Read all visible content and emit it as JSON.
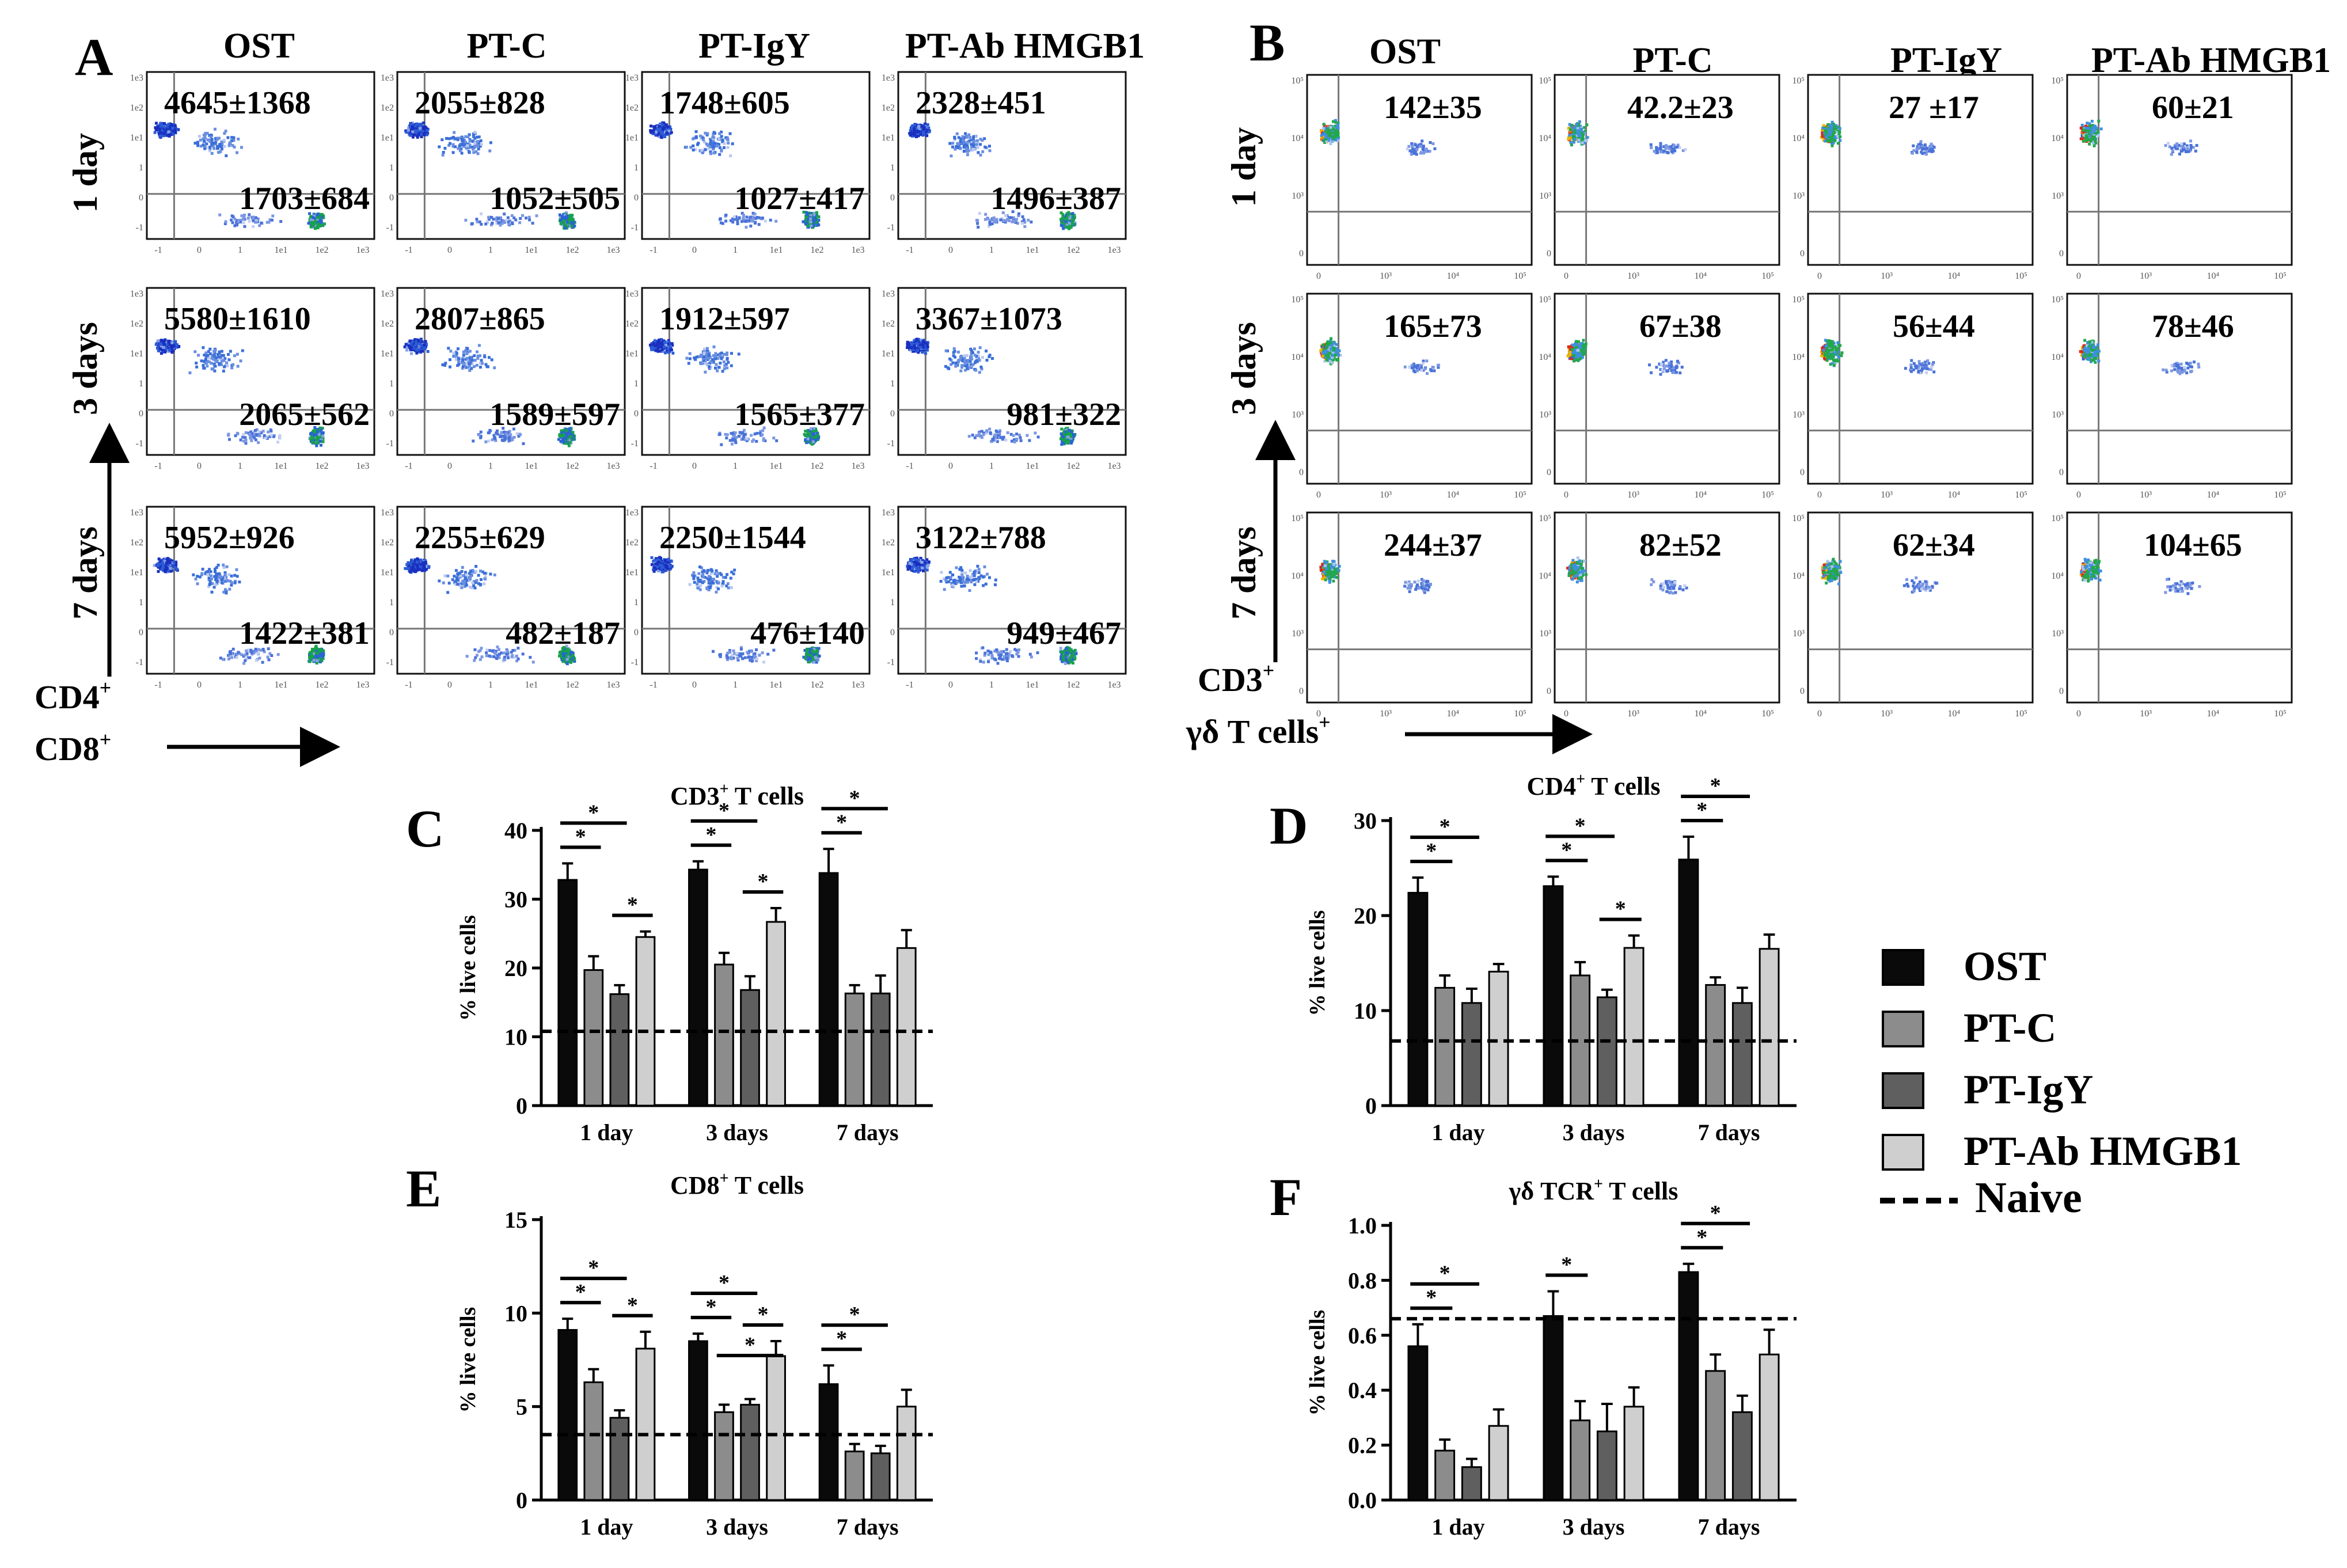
{
  "panel_letters": {
    "A": "A",
    "B": "B",
    "C": "C",
    "D": "D",
    "E": "E",
    "F": "F"
  },
  "groups": [
    "OST",
    "PT-C",
    "PT-IgY",
    "PT-Ab HMGB1"
  ],
  "timepoints": [
    "1 day",
    "3 days",
    "7 days"
  ],
  "flow_A": {
    "y_marker": "CD4",
    "x_marker": "CD8",
    "superscript": "+",
    "counts": [
      [
        [
          "4645±1368",
          "1703±684"
        ],
        [
          "2055±828",
          "1052±505"
        ],
        [
          "1748±605",
          "1027±417"
        ],
        [
          "2328±451",
          "1496±387"
        ]
      ],
      [
        [
          "5580±1610",
          "2065±562"
        ],
        [
          "2807±865",
          "1589±597"
        ],
        [
          "1912±597",
          "1565±377"
        ],
        [
          "3367±1073",
          "981±322"
        ]
      ],
      [
        [
          "5952±926",
          "1422±381"
        ],
        [
          "2255±629",
          "482±187"
        ],
        [
          "2250±1544",
          "476±140"
        ],
        [
          "3122±788",
          "949±467"
        ]
      ]
    ]
  },
  "flow_B": {
    "y_marker": "CD3",
    "x_marker": "γδ T cells",
    "superscript": "+",
    "counts": [
      [
        "142±35",
        "42.2±23",
        "27 ±17",
        "60±21"
      ],
      [
        "165±73",
        "67±38",
        "56±44",
        "78±46"
      ],
      [
        "244±37",
        "82±52",
        "62±34",
        "104±65"
      ]
    ]
  },
  "legend": {
    "items": [
      "OST",
      "PT-C",
      "PT-IgY",
      "PT-Ab HMGB1"
    ],
    "naive": "Naive"
  },
  "colors": {
    "OST": "#0a0a0a",
    "PT-C": "#8c8c8c",
    "PT-IgY": "#5f5f5f",
    "PT-Ab HMGB1": "#cfcfcf"
  },
  "chart_data": [
    {
      "panel": "C",
      "type": "bar",
      "title": "CD3",
      "title_sup": "+",
      "title_suffix": " T cells",
      "ylabel": "% live cells",
      "categories": [
        "1 day",
        "3 days",
        "7 days"
      ],
      "ylim": [
        0,
        40
      ],
      "yticks": [
        0,
        10,
        20,
        30,
        40
      ],
      "ytick_labels": [
        "0",
        "10",
        "20",
        "30",
        "40"
      ],
      "naive": 10.8,
      "series": [
        {
          "name": "OST",
          "values": [
            32.8,
            34.3,
            33.8
          ],
          "errors": [
            2.4,
            1.2,
            3.5
          ]
        },
        {
          "name": "PT-C",
          "values": [
            19.7,
            20.5,
            16.3
          ],
          "errors": [
            2.0,
            1.7,
            1.2
          ]
        },
        {
          "name": "PT-IgY",
          "values": [
            16.2,
            16.8,
            16.3
          ],
          "errors": [
            1.3,
            2.0,
            2.6
          ]
        },
        {
          "name": "PT-Ab HMGB1",
          "values": [
            24.5,
            26.7,
            22.9
          ],
          "errors": [
            0.8,
            2.0,
            2.6
          ]
        }
      ],
      "significance": [
        {
          "group": 0,
          "from": 0,
          "to": 1,
          "level": 0
        },
        {
          "group": 0,
          "from": 0,
          "to": 2,
          "level": 1
        },
        {
          "group": 0,
          "from": 2,
          "to": 3,
          "level": 0
        },
        {
          "group": 1,
          "from": 0,
          "to": 1,
          "level": 0
        },
        {
          "group": 1,
          "from": 0,
          "to": 2,
          "level": 1
        },
        {
          "group": 1,
          "from": 2,
          "to": 3,
          "level": 0
        },
        {
          "group": 2,
          "from": 0,
          "to": 1,
          "level": 0
        },
        {
          "group": 2,
          "from": 0,
          "to": 2,
          "level": 1
        }
      ]
    },
    {
      "panel": "D",
      "type": "bar",
      "title": "CD4",
      "title_sup": "+",
      "title_suffix": " T cells",
      "ylabel": "% live cells",
      "categories": [
        "1 day",
        "3 days",
        "7 days"
      ],
      "ylim": [
        0,
        30
      ],
      "yticks": [
        0,
        10,
        20,
        30
      ],
      "ytick_labels": [
        "0",
        "10",
        "20",
        "30"
      ],
      "naive": 6.8,
      "series": [
        {
          "name": "OST",
          "values": [
            22.4,
            23.1,
            25.9
          ],
          "errors": [
            1.6,
            1.0,
            2.4
          ]
        },
        {
          "name": "PT-C",
          "values": [
            12.4,
            13.7,
            12.7
          ],
          "errors": [
            1.3,
            1.4,
            0.8
          ]
        },
        {
          "name": "PT-IgY",
          "values": [
            10.8,
            11.4,
            10.8
          ],
          "errors": [
            1.5,
            0.8,
            1.6
          ]
        },
        {
          "name": "PT-Ab HMGB1",
          "values": [
            14.1,
            16.6,
            16.5
          ],
          "errors": [
            0.8,
            1.3,
            1.5
          ]
        }
      ],
      "significance": [
        {
          "group": 0,
          "from": 0,
          "to": 1,
          "level": 0
        },
        {
          "group": 0,
          "from": 0,
          "to": 2,
          "level": 1
        },
        {
          "group": 1,
          "from": 0,
          "to": 1,
          "level": 0
        },
        {
          "group": 1,
          "from": 0,
          "to": 2,
          "level": 1
        },
        {
          "group": 1,
          "from": 2,
          "to": 3,
          "level": 0
        },
        {
          "group": 2,
          "from": 0,
          "to": 1,
          "level": 0
        },
        {
          "group": 2,
          "from": 0,
          "to": 2,
          "level": 1
        }
      ]
    },
    {
      "panel": "E",
      "type": "bar",
      "title": "CD8",
      "title_sup": "+",
      "title_suffix": " T cells",
      "ylabel": "% live cells",
      "categories": [
        "1 day",
        "3 days",
        "7 days"
      ],
      "ylim": [
        0,
        15
      ],
      "yticks": [
        0,
        5,
        10,
        15
      ],
      "ytick_labels": [
        "0",
        "5",
        "10",
        "15"
      ],
      "naive": 3.5,
      "series": [
        {
          "name": "OST",
          "values": [
            9.1,
            8.5,
            6.2
          ],
          "errors": [
            0.6,
            0.4,
            1.0
          ]
        },
        {
          "name": "PT-C",
          "values": [
            6.3,
            4.7,
            2.6
          ],
          "errors": [
            0.7,
            0.4,
            0.4
          ]
        },
        {
          "name": "PT-IgY",
          "values": [
            4.4,
            5.1,
            2.5
          ],
          "errors": [
            0.4,
            0.3,
            0.4
          ]
        },
        {
          "name": "PT-Ab HMGB1",
          "values": [
            8.1,
            7.7,
            5.0
          ],
          "errors": [
            0.9,
            0.8,
            0.9
          ]
        }
      ],
      "significance": [
        {
          "group": 0,
          "from": 0,
          "to": 1,
          "level": 0
        },
        {
          "group": 0,
          "from": 0,
          "to": 2,
          "level": 1
        },
        {
          "group": 0,
          "from": 2,
          "to": 3,
          "level": 0
        },
        {
          "group": 1,
          "from": 0,
          "to": 1,
          "level": 0
        },
        {
          "group": 1,
          "from": 0,
          "to": 2,
          "level": 1
        },
        {
          "group": 1,
          "from": 1,
          "to": 3,
          "level": -1
        },
        {
          "group": 1,
          "from": 2,
          "to": 3,
          "level": 0
        },
        {
          "group": 2,
          "from": 0,
          "to": 1,
          "level": 0
        },
        {
          "group": 2,
          "from": 0,
          "to": 2,
          "level": 1
        }
      ]
    },
    {
      "panel": "F",
      "type": "bar",
      "title": "γδ TCR",
      "title_sup": "+",
      "title_suffix": " T cells",
      "ylabel": "% live cells",
      "categories": [
        "1 day",
        "3 days",
        "7 days"
      ],
      "ylim": [
        0,
        1.0
      ],
      "yticks": [
        0,
        0.2,
        0.4,
        0.6,
        0.8,
        1.0
      ],
      "ytick_labels": [
        "0.0",
        "0.2",
        "0.4",
        "0.6",
        "0.8",
        "1.0"
      ],
      "naive": 0.66,
      "series": [
        {
          "name": "OST",
          "values": [
            0.56,
            0.67,
            0.83
          ],
          "errors": [
            0.08,
            0.09,
            0.03
          ]
        },
        {
          "name": "PT-C",
          "values": [
            0.18,
            0.29,
            0.47
          ],
          "errors": [
            0.04,
            0.07,
            0.06
          ]
        },
        {
          "name": "PT-IgY",
          "values": [
            0.12,
            0.25,
            0.32
          ],
          "errors": [
            0.03,
            0.1,
            0.06
          ]
        },
        {
          "name": "PT-Ab HMGB1",
          "values": [
            0.27,
            0.34,
            0.53
          ],
          "errors": [
            0.06,
            0.07,
            0.09
          ]
        }
      ],
      "significance": [
        {
          "group": 0,
          "from": 0,
          "to": 1,
          "level": 0
        },
        {
          "group": 0,
          "from": 0,
          "to": 2,
          "level": 1
        },
        {
          "group": 1,
          "from": 0,
          "to": 1,
          "level": 0
        },
        {
          "group": 2,
          "from": 0,
          "to": 1,
          "level": 0
        },
        {
          "group": 2,
          "from": 0,
          "to": 2,
          "level": 1
        }
      ]
    }
  ]
}
